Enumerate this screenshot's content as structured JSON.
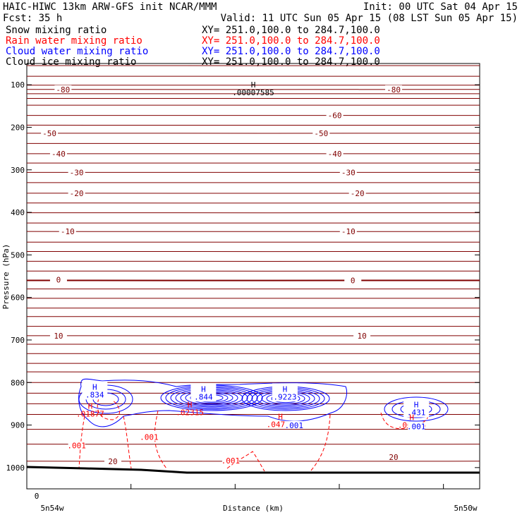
{
  "chart_data": {
    "type": "line",
    "title_left": "HAIC-HIWC 13km ARW-GFS init    NCAR/MMM",
    "fcst": "Fcst:   35 h",
    "init": "Init: 00 UTC Sat 04 Apr 15",
    "valid": "Valid: 11 UTC Sun 05 Apr 15 (08 LST Sun 05 Apr 15)",
    "fields": [
      {
        "name": "Snow mixing ratio",
        "xy": "XY=  251.0,100.0 to 284.7,100.0",
        "color": "#000000"
      },
      {
        "name": "Rain water mixing ratio",
        "xy": "XY= 251.0,100.0 to 284.7,100.0",
        "color": "#ff0000"
      },
      {
        "name": "Cloud water mixing ratio",
        "xy": "XY= 251.0,100.0 to 284.7,100.0",
        "color": "#0000ff"
      },
      {
        "name": "Cloud ice mixing ratio",
        "xy": "XY= 251.0,100.0 to 284.7,100.0",
        "color": "#000000"
      }
    ],
    "ylabel": "Pressure (hPa)",
    "xlabel": "Distance (km)",
    "ylim": [
      1050,
      50
    ],
    "yticks": [
      "100",
      "200",
      "300",
      "400",
      "500",
      "600",
      "700",
      "800",
      "900",
      "1000"
    ],
    "xticks": [
      {
        "value": 0,
        "label": "0"
      },
      {
        "value": 0.23
      },
      {
        "value": 0.46
      },
      {
        "value": 0.69
      },
      {
        "value": 0.92
      }
    ],
    "x_end_labels": [
      "5n54w",
      "5n50w"
    ],
    "temperature_color": "#800000",
    "temperature_labels": [
      {
        "text": "-80",
        "x": 0.08,
        "p": 111
      },
      {
        "text": "-80",
        "x": 0.81,
        "p": 111
      },
      {
        "text": "-60",
        "x": 0.68,
        "p": 172
      },
      {
        "text": "-50",
        "x": 0.05,
        "p": 214
      },
      {
        "text": "-50",
        "x": 0.65,
        "p": 214
      },
      {
        "text": "-40",
        "x": 0.07,
        "p": 262
      },
      {
        "text": "-40",
        "x": 0.68,
        "p": 262
      },
      {
        "text": "-30",
        "x": 0.11,
        "p": 306
      },
      {
        "text": "-30",
        "x": 0.71,
        "p": 306
      },
      {
        "text": "-20",
        "x": 0.11,
        "p": 355
      },
      {
        "text": "-20",
        "x": 0.73,
        "p": 355
      },
      {
        "text": "-10",
        "x": 0.09,
        "p": 445
      },
      {
        "text": "-10",
        "x": 0.71,
        "p": 445
      },
      {
        "text": "0",
        "x": 0.07,
        "p": 558
      },
      {
        "text": "0",
        "x": 0.72,
        "p": 560
      },
      {
        "text": "10",
        "x": 0.07,
        "p": 690
      },
      {
        "text": "10",
        "x": 0.74,
        "p": 690
      },
      {
        "text": "20",
        "x": 0.19,
        "p": 985
      },
      {
        "text": "20",
        "x": 0.81,
        "p": 975
      }
    ],
    "maxima": [
      {
        "label": "H",
        "value": ".00007585",
        "x": 0.5,
        "p": 110,
        "color": "#000000"
      },
      {
        "label": "H",
        "value": ".834",
        "x": 0.15,
        "p": 820,
        "color": "#0000ff"
      },
      {
        "label": "H",
        "value": ".844",
        "x": 0.39,
        "p": 825,
        "color": "#0000ff"
      },
      {
        "label": "H",
        "value": ".9223",
        "x": 0.57,
        "p": 825,
        "color": "#0000ff"
      },
      {
        "label": "H",
        "value": ".431",
        "x": 0.86,
        "p": 862,
        "color": "#0000ff"
      },
      {
        "label": "H",
        "value": ".01877",
        "x": 0.14,
        "p": 865,
        "color": "#ff0000"
      },
      {
        "label": "H",
        "value": ".02315",
        "x": 0.36,
        "p": 862,
        "color": "#ff0000"
      },
      {
        "label": "H",
        "value": ".04716",
        "x": 0.56,
        "p": 890,
        "color": "#ff0000"
      },
      {
        "label": "H",
        "value": ".00035",
        "x": 0.85,
        "p": 892,
        "color": "#ff0000"
      }
    ],
    "contour_labels": [
      {
        "text": ".001",
        "x": 0.11,
        "p": 950,
        "color": "#ff0000"
      },
      {
        "text": ".001",
        "x": 0.27,
        "p": 930,
        "color": "#ff0000"
      },
      {
        "text": ".001",
        "x": 0.45,
        "p": 985,
        "color": "#ff0000"
      },
      {
        "text": ".001",
        "x": 0.59,
        "p": 902,
        "color": "#0000ff"
      },
      {
        "text": ".001",
        "x": 0.86,
        "p": 905,
        "color": "#0000ff"
      }
    ]
  }
}
